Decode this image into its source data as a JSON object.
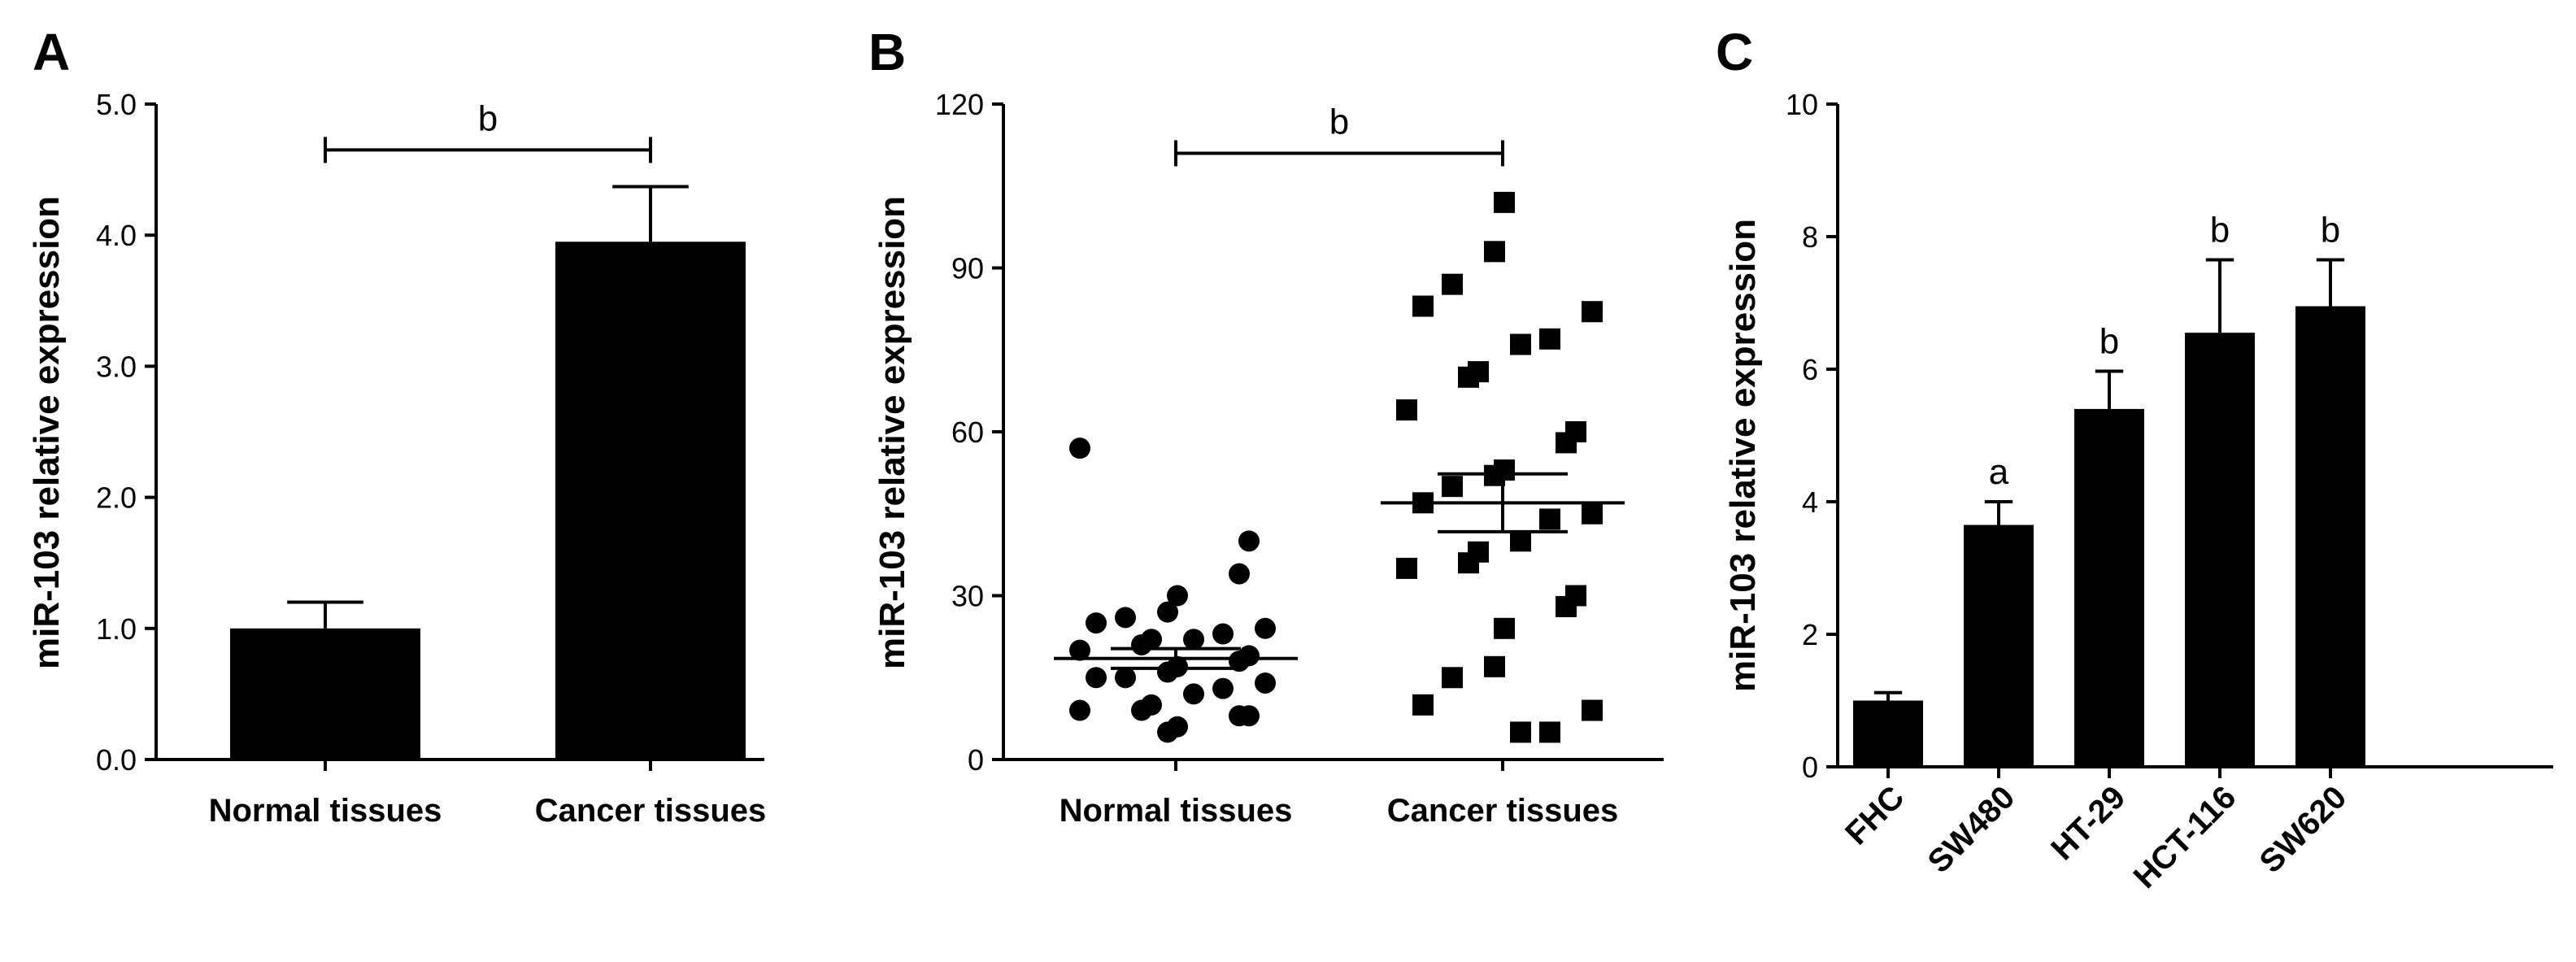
{
  "chart_data": [
    {
      "panel": "A",
      "type": "bar",
      "ylabel": "miR-103 relative expression",
      "xlabel": "",
      "ylim": [
        0,
        5
      ],
      "yticks": [
        "0.0",
        "1.0",
        "2.0",
        "3.0",
        "4.0",
        "5.0"
      ],
      "categories": [
        "Normal tissues",
        "Cancer tissues"
      ],
      "values": [
        1.0,
        3.95
      ],
      "errors": [
        0.2,
        0.42
      ],
      "bar_color": "#000000",
      "significance": [
        {
          "from": 0,
          "to": 1,
          "y": 4.65,
          "label": "b"
        }
      ]
    },
    {
      "panel": "B",
      "type": "scatter",
      "ylabel": "miR-103 relative expression",
      "xlabel": "",
      "ylim": [
        0,
        120
      ],
      "yticks": [
        "0",
        "30",
        "60",
        "90",
        "120"
      ],
      "categories": [
        "Normal tissues",
        "Cancer tissues"
      ],
      "series": [
        {
          "name": "Normal tissues",
          "marker": "circle",
          "values": [
            57,
            40,
            34,
            30,
            27,
            26,
            25,
            24,
            23,
            22,
            22,
            21,
            20,
            19,
            18,
            17,
            16,
            15,
            15,
            14,
            13,
            12,
            10,
            9,
            9,
            8,
            8,
            6,
            5
          ]
        },
        {
          "name": "Cancer tissues",
          "marker": "square",
          "values": [
            102,
            93,
            87,
            83,
            82,
            77,
            76,
            71,
            70,
            64,
            60,
            58,
            53,
            52,
            50,
            47,
            45,
            44,
            40,
            38,
            36,
            35,
            30,
            28,
            24,
            17,
            15,
            10,
            9,
            5,
            5
          ]
        }
      ],
      "means": [
        18.5,
        47
      ],
      "sems": [
        1.8,
        5.3
      ],
      "significance": [
        {
          "from": 0,
          "to": 1,
          "y": 111,
          "label": "b"
        }
      ]
    },
    {
      "panel": "C",
      "type": "bar",
      "ylabel": "miR-103 relative expression",
      "xlabel": "",
      "ylim": [
        0,
        10
      ],
      "yticks": [
        "0",
        "2",
        "4",
        "6",
        "8",
        "10"
      ],
      "categories": [
        "FHC",
        "SW480",
        "HT-29",
        "HCT-116",
        "SW620"
      ],
      "values": [
        1.0,
        3.65,
        5.4,
        6.55,
        6.95
      ],
      "errors": [
        0.12,
        0.35,
        0.57,
        1.1,
        0.7
      ],
      "annotations": [
        "",
        "a",
        "b",
        "b",
        "b"
      ],
      "bar_color": "#000000"
    }
  ]
}
